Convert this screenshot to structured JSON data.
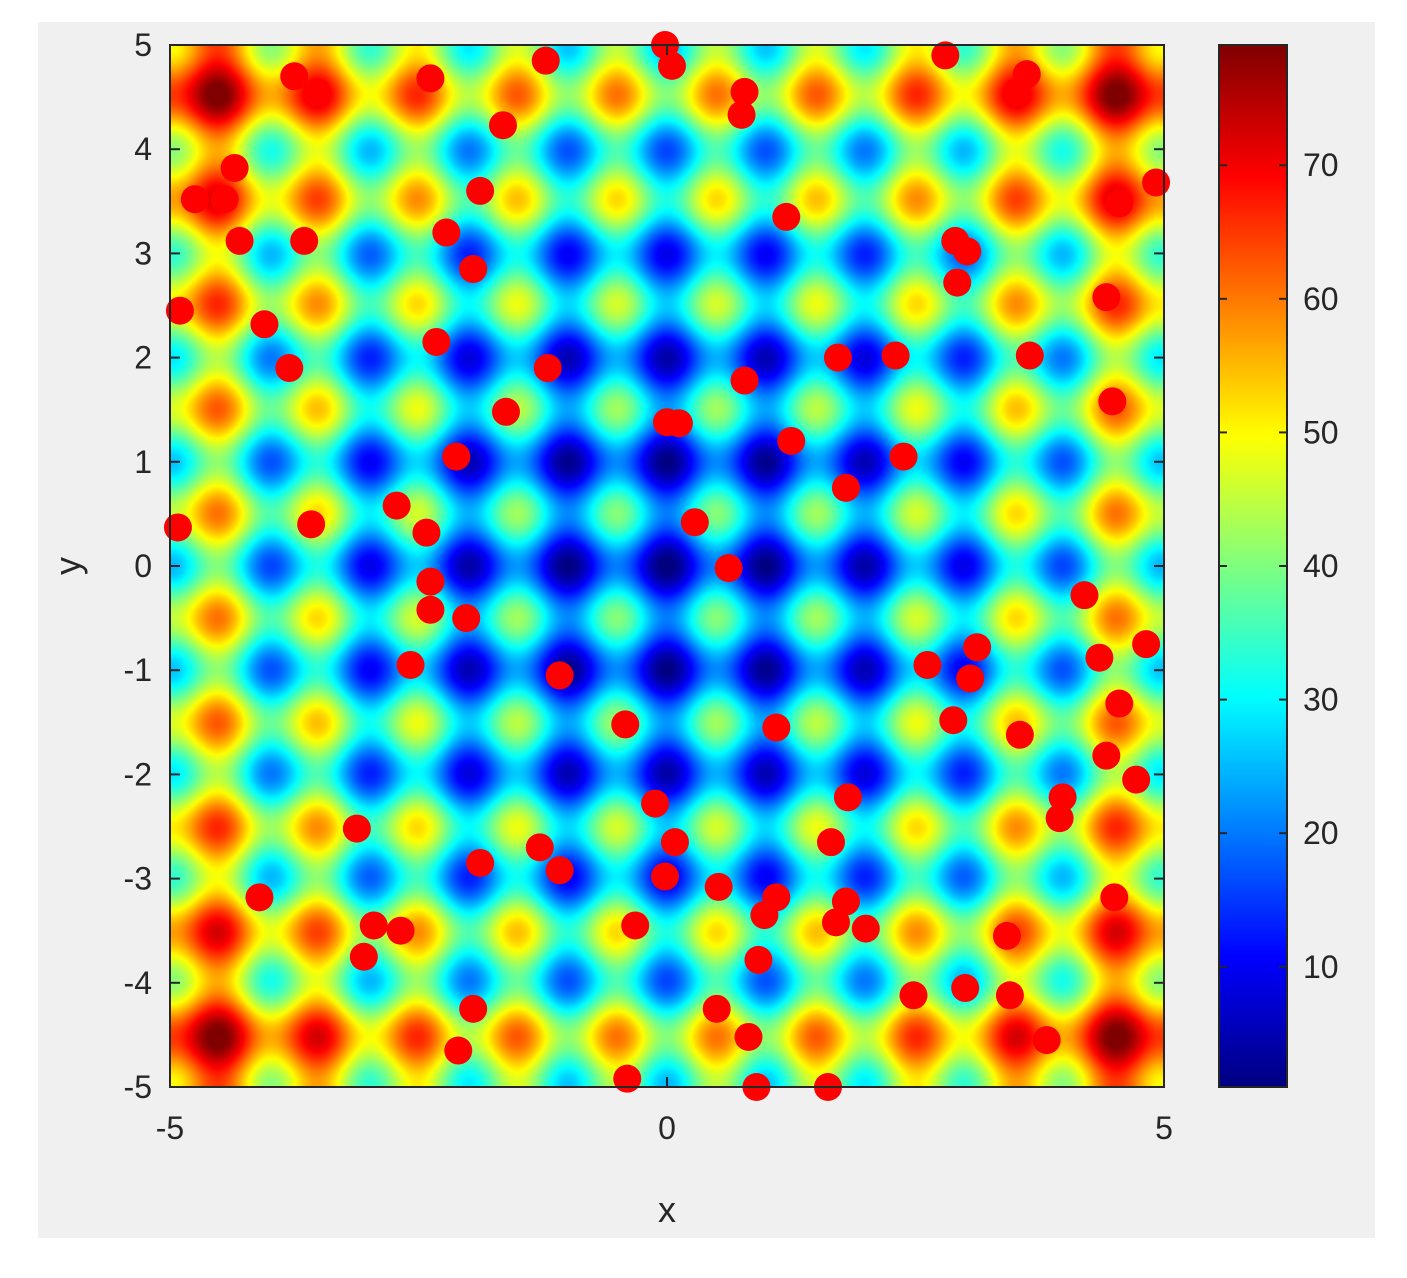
{
  "chart_data": {
    "type": "heatmap",
    "title": "",
    "xlabel": "x",
    "ylabel": "y",
    "xlim": [
      -5,
      5
    ],
    "ylim": [
      -5,
      5
    ],
    "xticks": [
      -5,
      0,
      5
    ],
    "yticks": [
      5,
      4,
      3,
      2,
      1,
      0,
      -1,
      -2,
      -3,
      -4,
      -5
    ],
    "colorbar": {
      "ticks": [
        10,
        20,
        30,
        40,
        50,
        60,
        70
      ],
      "range": [
        1,
        79
      ],
      "colormap": "jet"
    },
    "surface": "rastrigin: 20 + x^2 + y^2 - 10cos(2πx) - 10cos(2πy)",
    "series": [
      {
        "type": "scatter",
        "color": "#ff0000",
        "points": [
          [
            -0.02,
            5.0
          ],
          [
            0.05,
            4.8
          ],
          [
            -1.22,
            4.85
          ],
          [
            -1.65,
            4.23
          ],
          [
            0.78,
            4.55
          ],
          [
            0.75,
            4.33
          ],
          [
            2.8,
            4.9
          ],
          [
            3.62,
            4.72
          ],
          [
            3.52,
            4.55
          ],
          [
            -3.75,
            4.7
          ],
          [
            -3.52,
            4.55
          ],
          [
            -2.38,
            4.68
          ],
          [
            -4.35,
            3.82
          ],
          [
            -4.75,
            3.52
          ],
          [
            -4.45,
            3.52
          ],
          [
            -4.3,
            3.12
          ],
          [
            -3.65,
            3.12
          ],
          [
            -1.88,
            3.6
          ],
          [
            1.2,
            3.35
          ],
          [
            4.92,
            3.68
          ],
          [
            4.55,
            3.48
          ],
          [
            2.9,
            3.12
          ],
          [
            3.02,
            3.02
          ],
          [
            2.92,
            2.72
          ],
          [
            -2.22,
            3.2
          ],
          [
            -1.95,
            2.85
          ],
          [
            -4.9,
            2.45
          ],
          [
            -4.05,
            2.32
          ],
          [
            -3.8,
            1.9
          ],
          [
            -2.32,
            2.15
          ],
          [
            -1.2,
            1.9
          ],
          [
            1.72,
            2.0
          ],
          [
            2.3,
            2.02
          ],
          [
            3.65,
            2.02
          ],
          [
            4.42,
            2.58
          ],
          [
            0.78,
            1.78
          ],
          [
            4.48,
            1.58
          ],
          [
            -1.62,
            1.48
          ],
          [
            0.0,
            1.38
          ],
          [
            0.12,
            1.37
          ],
          [
            1.25,
            1.2
          ],
          [
            -2.12,
            1.05
          ],
          [
            2.38,
            1.05
          ],
          [
            1.8,
            0.75
          ],
          [
            -4.92,
            0.37
          ],
          [
            -3.58,
            0.4
          ],
          [
            -2.72,
            0.58
          ],
          [
            -2.42,
            0.32
          ],
          [
            0.28,
            0.42
          ],
          [
            0.62,
            -0.02
          ],
          [
            -2.38,
            -0.15
          ],
          [
            -2.38,
            -0.42
          ],
          [
            -2.02,
            -0.5
          ],
          [
            4.2,
            -0.28
          ],
          [
            -2.58,
            -0.95
          ],
          [
            -1.08,
            -1.05
          ],
          [
            2.62,
            -0.95
          ],
          [
            3.12,
            -0.78
          ],
          [
            3.05,
            -1.08
          ],
          [
            4.35,
            -0.88
          ],
          [
            4.82,
            -0.75
          ],
          [
            -0.42,
            -1.52
          ],
          [
            1.1,
            -1.55
          ],
          [
            2.88,
            -1.48
          ],
          [
            3.55,
            -1.62
          ],
          [
            4.55,
            -1.32
          ],
          [
            4.42,
            -1.82
          ],
          [
            4.72,
            -2.05
          ],
          [
            -0.12,
            -2.28
          ],
          [
            1.82,
            -2.22
          ],
          [
            3.98,
            -2.22
          ],
          [
            3.95,
            -2.42
          ],
          [
            -3.12,
            -2.52
          ],
          [
            -1.28,
            -2.7
          ],
          [
            -1.08,
            -2.92
          ],
          [
            0.08,
            -2.65
          ],
          [
            1.65,
            -2.65
          ],
          [
            -1.88,
            -2.85
          ],
          [
            -0.02,
            -2.98
          ],
          [
            0.52,
            -3.08
          ],
          [
            -4.1,
            -3.18
          ],
          [
            1.1,
            -3.18
          ],
          [
            0.98,
            -3.35
          ],
          [
            1.8,
            -3.22
          ],
          [
            4.5,
            -3.18
          ],
          [
            1.7,
            -3.42
          ],
          [
            2.0,
            -3.48
          ],
          [
            -2.95,
            -3.45
          ],
          [
            -2.68,
            -3.5
          ],
          [
            -0.32,
            -3.45
          ],
          [
            3.42,
            -3.55
          ],
          [
            -3.05,
            -3.75
          ],
          [
            0.92,
            -3.78
          ],
          [
            2.48,
            -4.12
          ],
          [
            3.0,
            -4.05
          ],
          [
            3.45,
            -4.12
          ],
          [
            -1.95,
            -4.25
          ],
          [
            0.5,
            -4.25
          ],
          [
            0.82,
            -4.52
          ],
          [
            3.82,
            -4.55
          ],
          [
            -2.1,
            -4.65
          ],
          [
            -0.4,
            -4.92
          ],
          [
            0.9,
            -5.0
          ],
          [
            1.62,
            -5.0
          ]
        ]
      }
    ]
  }
}
